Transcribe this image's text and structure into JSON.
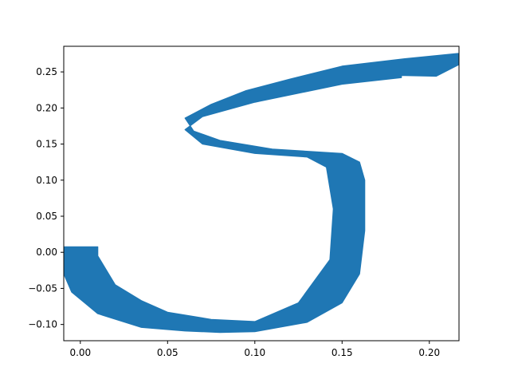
{
  "chart_data": {
    "type": "area",
    "title": "",
    "xlabel": "",
    "ylabel": "",
    "xlim": [
      -0.0095,
      0.217
    ],
    "ylim": [
      -0.1225,
      0.2855
    ],
    "x_ticks": [
      0.0,
      0.05,
      0.1,
      0.15,
      0.2
    ],
    "x_tick_labels": [
      "0.00",
      "0.05",
      "0.10",
      "0.15",
      "0.20"
    ],
    "y_ticks": [
      -0.1,
      -0.05,
      0.0,
      0.05,
      0.1,
      0.15,
      0.2,
      0.25
    ],
    "y_tick_labels": [
      "−0.10",
      "−0.05",
      "0.00",
      "0.05",
      "0.10",
      "0.15",
      "0.20",
      "0.25"
    ],
    "grid": false,
    "legend": "none",
    "colors": {
      "fill": "#1f77b4",
      "axes": "#000000",
      "background": "#ffffff"
    },
    "series": [
      {
        "shape": "ribbon",
        "outer_edge": [
          [
            -0.0095,
            0.0075
          ],
          [
            0.01,
            0.0075
          ],
          [
            0.01,
            -0.005
          ],
          [
            0.02,
            -0.045
          ],
          [
            0.035,
            -0.067
          ],
          [
            0.05,
            -0.083
          ],
          [
            0.075,
            -0.093
          ],
          [
            0.1,
            -0.096
          ],
          [
            0.125,
            -0.07
          ],
          [
            0.143,
            -0.01
          ],
          [
            0.145,
            0.06
          ],
          [
            0.141,
            0.118
          ],
          [
            0.13,
            0.132
          ],
          [
            0.1,
            0.137
          ],
          [
            0.07,
            0.15
          ],
          [
            0.06,
            0.17
          ],
          [
            0.07,
            0.188
          ],
          [
            0.1,
            0.208
          ],
          [
            0.15,
            0.233
          ],
          [
            0.184,
            0.242
          ],
          [
            0.184,
            0.245
          ],
          [
            0.204,
            0.244
          ],
          [
            0.2165,
            0.2595
          ],
          [
            0.2165,
            0.2755
          ]
        ],
        "inner_edge": [
          [
            -0.0095,
            0.0075
          ],
          [
            -0.0095,
            -0.03
          ],
          [
            -0.005,
            -0.055
          ],
          [
            0.01,
            -0.085
          ],
          [
            0.035,
            -0.104
          ],
          [
            0.06,
            -0.109
          ],
          [
            0.08,
            -0.111
          ],
          [
            0.1,
            -0.11
          ],
          [
            0.13,
            -0.097
          ],
          [
            0.15,
            -0.07
          ],
          [
            0.16,
            -0.03
          ],
          [
            0.163,
            0.03
          ],
          [
            0.163,
            0.1
          ],
          [
            0.16,
            0.125
          ],
          [
            0.15,
            0.137
          ],
          [
            0.11,
            0.143
          ],
          [
            0.08,
            0.155
          ],
          [
            0.065,
            0.168
          ],
          [
            0.06,
            0.186
          ],
          [
            0.075,
            0.205
          ],
          [
            0.095,
            0.224
          ],
          [
            0.12,
            0.24
          ],
          [
            0.15,
            0.258
          ],
          [
            0.185,
            0.268
          ],
          [
            0.2165,
            0.2755
          ]
        ]
      }
    ]
  }
}
